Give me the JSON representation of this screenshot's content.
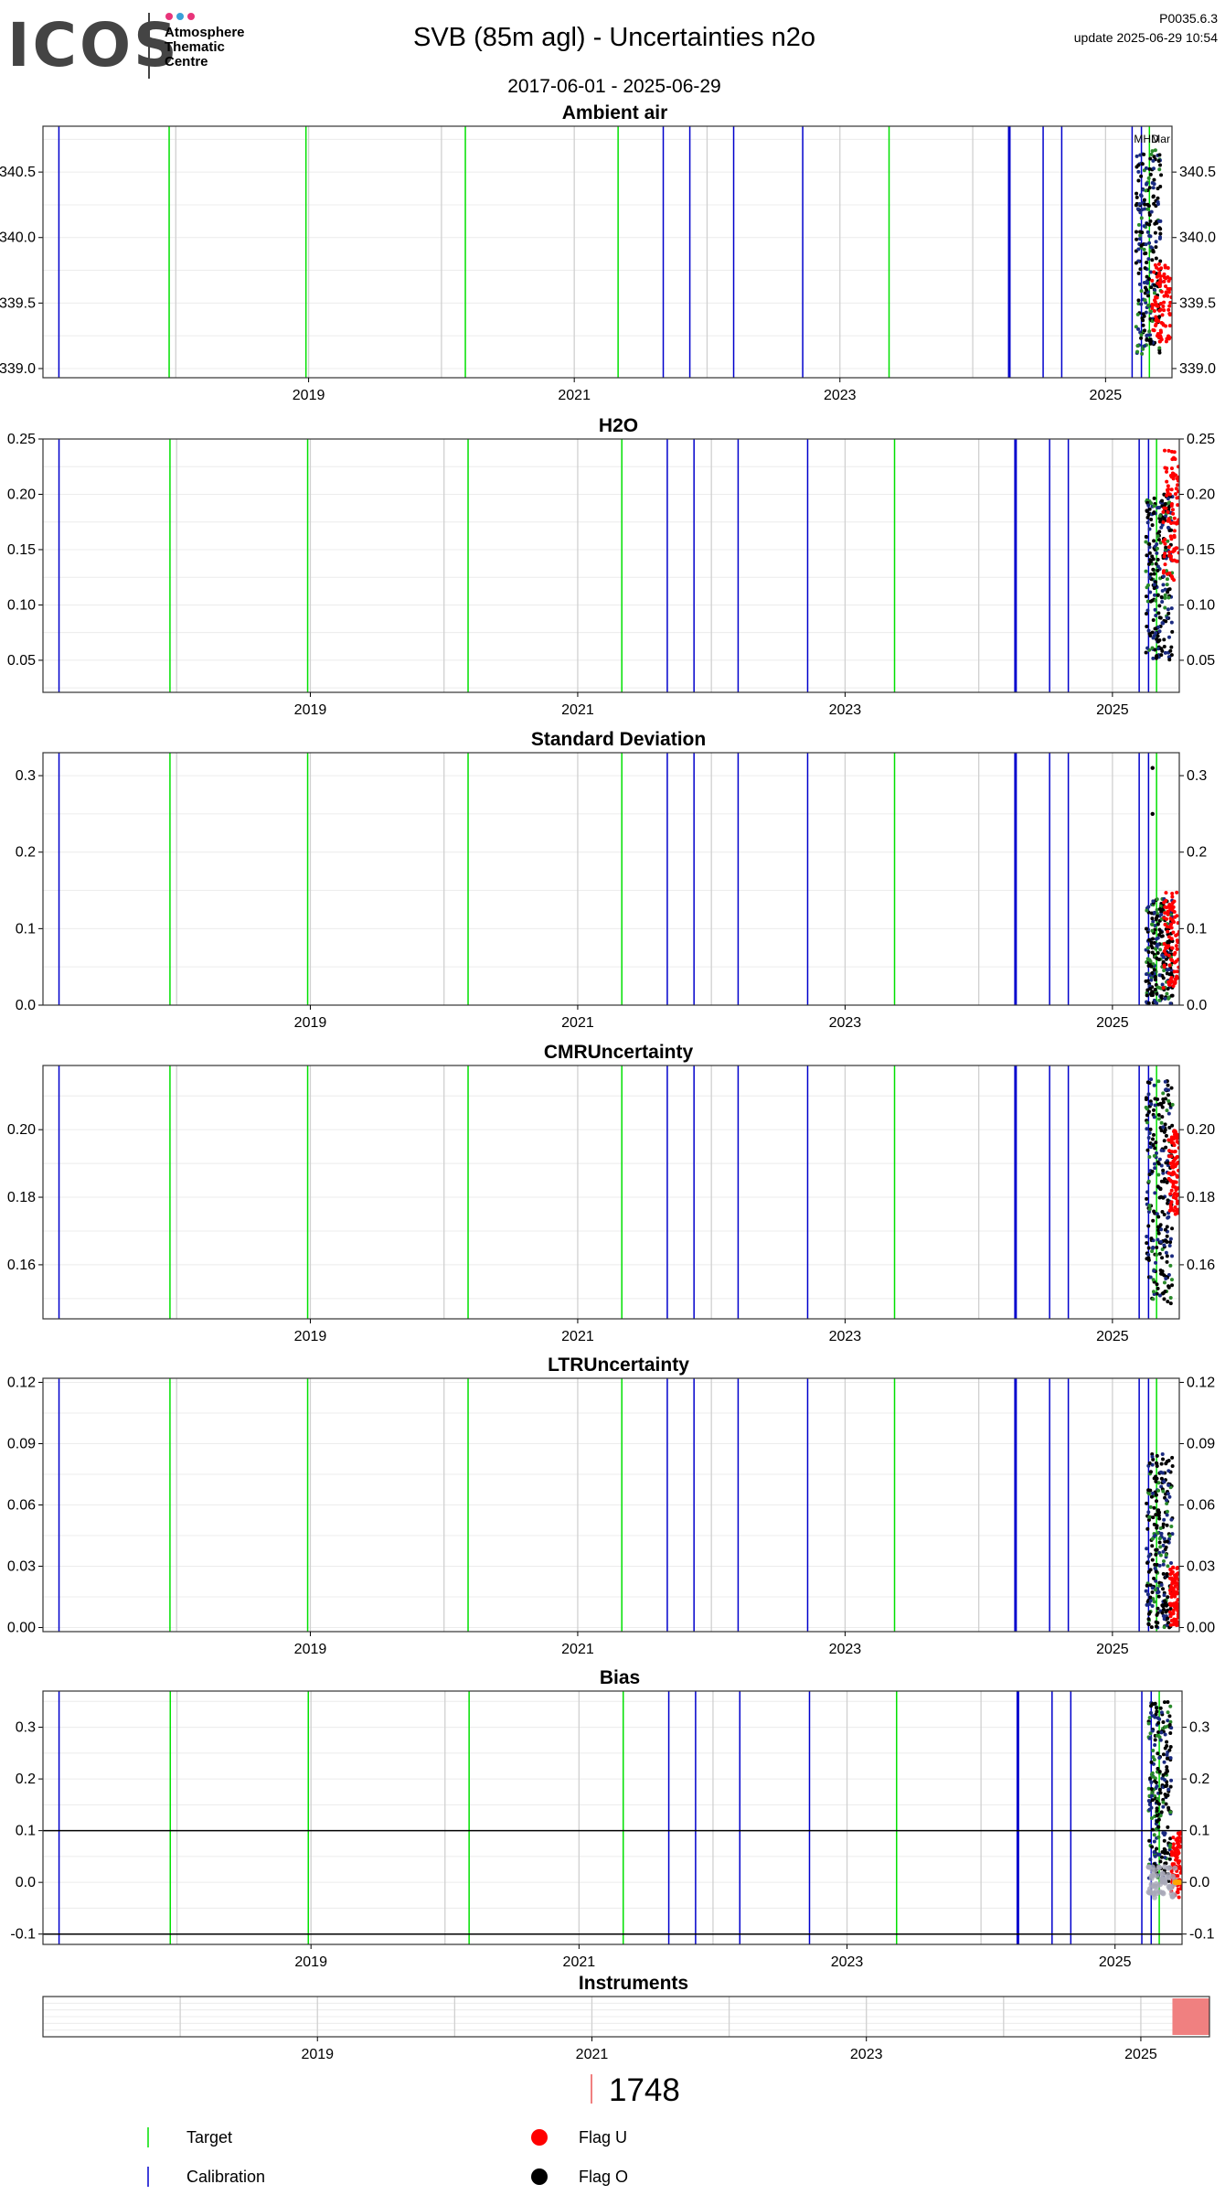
{
  "header": {
    "logo_text": "ICOS",
    "logo_subtitle_lines": [
      "Atmosphere",
      "Thematic",
      "Centre"
    ],
    "logo_dot_colors": [
      "#e8347a",
      "#3aa0d8",
      "#e8347a"
    ],
    "title": "SVB  (85m agl) - Uncertainties n2o",
    "date_range": "2017-06-01 - 2025-06-29",
    "version": "P0035.6.3",
    "update": "update  2025-06-29 10:54"
  },
  "colors": {
    "target": "#00e000",
    "calibration": "#0000cc",
    "year_grid": "#d0d0d0",
    "minor_grid": "#ececec",
    "flag_u": "#ff0000",
    "flag_o": "#000000",
    "bias_gray": "#a8a8b8",
    "bias_orange": "#ffa500",
    "instrument": "#f08080"
  },
  "events": {
    "target_dates": [
      2017.95,
      2018.98,
      2020.18,
      2021.33,
      2023.37,
      2025.33
    ],
    "calibration_dates": [
      2017.12,
      2021.67,
      2021.87,
      2022.2,
      2022.72,
      2024.27,
      2024.28,
      2024.53,
      2024.67,
      2025.2,
      2025.27
    ],
    "top_labels": [
      "MHD",
      "Mar"
    ]
  },
  "chart_data": [
    {
      "type": "scatter",
      "title": "Ambient air",
      "ylim": [
        338.93,
        340.85
      ],
      "yticks": [
        "339.0",
        "339.5",
        "340.0",
        "340.5"
      ],
      "xlim": [
        2017.0,
        2025.5
      ],
      "xticks": [
        "2019",
        "2021",
        "2023",
        "2025"
      ],
      "grid": true,
      "series": [
        {
          "flag": "O",
          "x_range": [
            2025.23,
            2025.42
          ],
          "y_range": [
            339.1,
            340.7
          ]
        },
        {
          "flag": "U",
          "x_range": [
            2025.35,
            2025.5
          ],
          "y_range": [
            339.2,
            339.8
          ]
        }
      ]
    },
    {
      "type": "scatter",
      "title": "H2O",
      "ylim": [
        0.021,
        0.25
      ],
      "yticks": [
        "0.05",
        "0.10",
        "0.15",
        "0.20",
        "0.25"
      ],
      "xlim": [
        2017.0,
        2025.5
      ],
      "xticks": [
        "2019",
        "2021",
        "2023",
        "2025"
      ],
      "grid": true,
      "series": [
        {
          "flag": "O",
          "x_range": [
            2025.25,
            2025.45
          ],
          "y_range": [
            0.05,
            0.2
          ]
        },
        {
          "flag": "U",
          "x_range": [
            2025.38,
            2025.5
          ],
          "y_range": [
            0.12,
            0.24
          ]
        }
      ]
    },
    {
      "type": "scatter",
      "title": "Standard Deviation",
      "ylim": [
        0.0,
        0.33
      ],
      "yticks": [
        "0.0",
        "0.1",
        "0.2",
        "0.3"
      ],
      "xlim": [
        2017.0,
        2025.5
      ],
      "xticks": [
        "2019",
        "2021",
        "2023",
        "2025"
      ],
      "grid": true,
      "series": [
        {
          "flag": "O",
          "x_range": [
            2025.25,
            2025.45
          ],
          "y_range": [
            0.0,
            0.14
          ]
        },
        {
          "flag": "U",
          "x_range": [
            2025.38,
            2025.5
          ],
          "y_range": [
            0.02,
            0.15
          ]
        }
      ],
      "outliers": [
        {
          "x": 2025.3,
          "y": 0.31
        },
        {
          "x": 2025.3,
          "y": 0.25
        }
      ]
    },
    {
      "type": "scatter",
      "title": "CMRUncertainty",
      "ylim": [
        0.144,
        0.219
      ],
      "yticks": [
        "0.16",
        "0.18",
        "0.20"
      ],
      "xlim": [
        2017.0,
        2025.5
      ],
      "xticks": [
        "2019",
        "2021",
        "2023",
        "2025"
      ],
      "grid": true,
      "series": [
        {
          "flag": "O",
          "x_range": [
            2025.25,
            2025.45
          ],
          "y_range": [
            0.148,
            0.216
          ]
        },
        {
          "flag": "U",
          "x_range": [
            2025.42,
            2025.5
          ],
          "y_range": [
            0.175,
            0.2
          ]
        }
      ]
    },
    {
      "type": "scatter",
      "title": "LTRUncertainty",
      "ylim": [
        -0.002,
        0.122
      ],
      "yticks": [
        "0.00",
        "0.03",
        "0.06",
        "0.09",
        "0.12"
      ],
      "xlim": [
        2017.0,
        2025.5
      ],
      "xticks": [
        "2019",
        "2021",
        "2023",
        "2025"
      ],
      "grid": true,
      "series": [
        {
          "flag": "O",
          "x_range": [
            2025.25,
            2025.45
          ],
          "y_range": [
            0.0,
            0.085
          ]
        },
        {
          "flag": "U",
          "x_range": [
            2025.43,
            2025.5
          ],
          "y_range": [
            0.0,
            0.03
          ]
        }
      ]
    },
    {
      "type": "scatter",
      "title": "Bias",
      "ylim": [
        -0.12,
        0.37
      ],
      "yticks": [
        "-0.1",
        "0.0",
        "0.1",
        "0.2",
        "0.3"
      ],
      "xlim": [
        2017.0,
        2025.5
      ],
      "xticks": [
        "2019",
        "2021",
        "2023",
        "2025"
      ],
      "grid": true,
      "hlines": [
        0.1,
        -0.1
      ],
      "series": [
        {
          "flag": "O",
          "x_range": [
            2025.25,
            2025.42
          ],
          "y_range": [
            0.0,
            0.35
          ]
        },
        {
          "flag": "U",
          "x_range": [
            2025.42,
            2025.5
          ],
          "y_range": [
            -0.03,
            0.1
          ]
        }
      ]
    },
    {
      "type": "bar",
      "title": "Instruments",
      "xlim": [
        2017.0,
        2025.5
      ],
      "xticks": [
        "2019",
        "2021",
        "2023",
        "2025"
      ],
      "instruments": [
        {
          "id": "1748",
          "start": 2025.23,
          "end": 2025.5
        }
      ]
    }
  ],
  "legend": {
    "target_label": "Target",
    "calibration_label": "Calibration",
    "flag_u_label": "Flag U",
    "flag_o_label": "Flag O",
    "instrument_id": "1748"
  }
}
